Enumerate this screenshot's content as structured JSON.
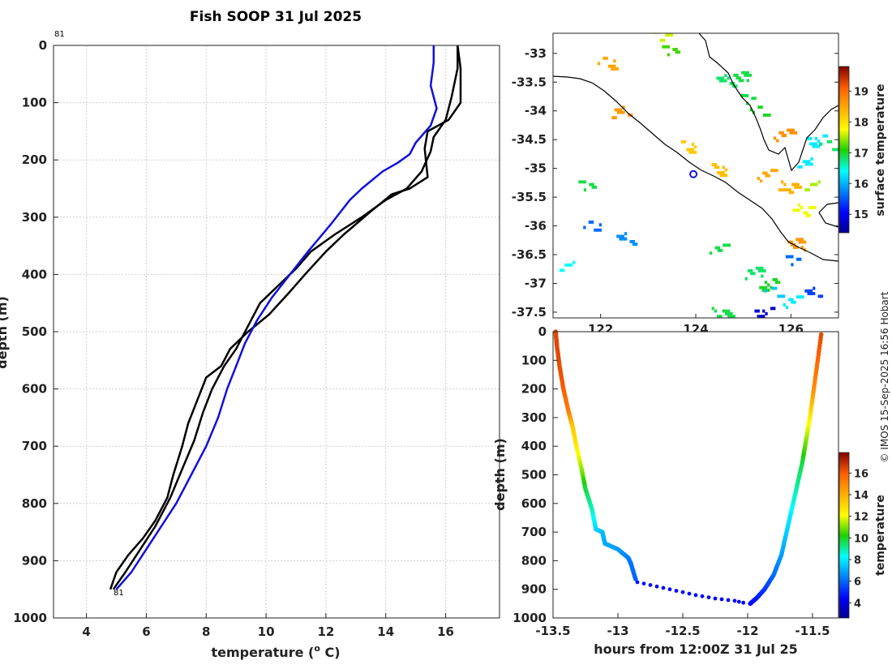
{
  "title": "Fish SOOP 31 Jul 2025",
  "credit": "© IMOS 15-Sep-2025 16:56 Hobart",
  "colors": {
    "blue": "#1010dd",
    "black": "#000000",
    "coast": "#000000"
  },
  "chart_data": [
    {
      "type": "line",
      "name": "temperature-profile",
      "xlabel": "temperature (o C)",
      "xlabel_main": "temperature (",
      "xlabel_sup": "o",
      "xlabel_tail": " C)",
      "ylabel": "depth (m)",
      "xlim": [
        2.9,
        17.8
      ],
      "ylim": [
        0,
        1000
      ],
      "xticks": [
        4,
        6,
        8,
        10,
        12,
        14,
        16
      ],
      "yticks": [
        0,
        100,
        200,
        300,
        400,
        500,
        600,
        700,
        800,
        900,
        1000
      ],
      "drop_label_top": "81",
      "drop_label_bottom": "81",
      "grid": true,
      "series": [
        {
          "name": "current drop",
          "color": "#1010dd",
          "points": [
            [
              15.6,
              0
            ],
            [
              15.6,
              30
            ],
            [
              15.5,
              70
            ],
            [
              15.7,
              110
            ],
            [
              15.5,
              140
            ],
            [
              15.0,
              170
            ],
            [
              14.8,
              190
            ],
            [
              14.4,
              205
            ],
            [
              13.9,
              220
            ],
            [
              13.2,
              250
            ],
            [
              12.8,
              270
            ],
            [
              12.2,
              310
            ],
            [
              11.4,
              360
            ],
            [
              10.8,
              400
            ],
            [
              10.2,
              440
            ],
            [
              9.7,
              480
            ],
            [
              9.3,
              520
            ],
            [
              9.0,
              560
            ],
            [
              8.7,
              600
            ],
            [
              8.4,
              650
            ],
            [
              8.0,
              700
            ],
            [
              7.5,
              750
            ],
            [
              7.0,
              800
            ],
            [
              6.5,
              840
            ],
            [
              6.0,
              880
            ],
            [
              5.5,
              920
            ],
            [
              5.0,
              950
            ]
          ]
        },
        {
          "name": "previous drop 1",
          "color": "#000000",
          "points": [
            [
              16.4,
              0
            ],
            [
              16.4,
              40
            ],
            [
              16.2,
              90
            ],
            [
              16.0,
              130
            ],
            [
              15.6,
              160
            ],
            [
              15.5,
              185
            ],
            [
              15.2,
              220
            ],
            [
              14.7,
              250
            ],
            [
              14.0,
              270
            ],
            [
              13.2,
              300
            ],
            [
              12.3,
              330
            ],
            [
              11.5,
              360
            ],
            [
              11.0,
              390
            ],
            [
              10.4,
              420
            ],
            [
              9.8,
              450
            ],
            [
              9.4,
              490
            ],
            [
              9.0,
              530
            ],
            [
              8.6,
              560
            ],
            [
              8.2,
              600
            ],
            [
              7.9,
              640
            ],
            [
              7.6,
              690
            ],
            [
              7.2,
              740
            ],
            [
              6.8,
              790
            ],
            [
              6.3,
              840
            ],
            [
              5.8,
              880
            ],
            [
              5.3,
              920
            ],
            [
              4.9,
              950
            ]
          ]
        },
        {
          "name": "previous drop 2",
          "color": "#000000",
          "points": [
            [
              16.4,
              0
            ],
            [
              16.5,
              40
            ],
            [
              16.5,
              100
            ],
            [
              16.1,
              130
            ],
            [
              15.4,
              150
            ],
            [
              15.3,
              180
            ],
            [
              15.4,
              230
            ],
            [
              14.8,
              250
            ],
            [
              14.2,
              260
            ],
            [
              13.5,
              290
            ],
            [
              12.6,
              330
            ],
            [
              12.0,
              360
            ],
            [
              11.3,
              400
            ],
            [
              10.8,
              430
            ],
            [
              10.1,
              470
            ],
            [
              9.4,
              500
            ],
            [
              8.8,
              530
            ],
            [
              8.5,
              560
            ],
            [
              8.0,
              580
            ],
            [
              7.7,
              620
            ],
            [
              7.4,
              660
            ],
            [
              7.2,
              700
            ],
            [
              6.9,
              750
            ],
            [
              6.7,
              790
            ],
            [
              6.3,
              830
            ],
            [
              5.9,
              860
            ],
            [
              5.4,
              890
            ],
            [
              5.0,
              920
            ],
            [
              4.8,
              950
            ]
          ]
        }
      ]
    },
    {
      "type": "heatmap",
      "name": "surface-temperature-map",
      "colorbar_label": "surface temperature",
      "xlim": [
        121.0,
        127.0
      ],
      "ylim": [
        -37.6,
        -32.65
      ],
      "xticks": [
        122,
        124,
        126
      ],
      "xtick_labels": [
        "122",
        "124",
        "126"
      ],
      "yticks": [
        -33,
        -33.5,
        -34,
        -34.5,
        -35,
        -35.5,
        -36,
        -36.5,
        -37,
        -37.5
      ],
      "ytick_labels": [
        "-33",
        "-33.5",
        "-34",
        "-34.5",
        "-35",
        "-35.5",
        "-36",
        "-36.5",
        "-37",
        "-37.5"
      ],
      "clim": [
        14.4,
        19.8
      ],
      "cticks": [
        15,
        16,
        17,
        18,
        19
      ],
      "drop_location": {
        "lon": 123.95,
        "lat": -35.1
      },
      "patches": [
        {
          "lon": 123.3,
          "lat": -32.7,
          "t": 17.6
        },
        {
          "lon": 123.4,
          "lat": -32.95,
          "t": 17.2
        },
        {
          "lon": 122.1,
          "lat": -33.15,
          "t": 18.5
        },
        {
          "lon": 124.6,
          "lat": -33.45,
          "t": 16.8
        },
        {
          "lon": 124.9,
          "lat": -33.4,
          "t": 16.9
        },
        {
          "lon": 125.0,
          "lat": -33.8,
          "t": 16.9
        },
        {
          "lon": 125.3,
          "lat": -34.0,
          "t": 17.0
        },
        {
          "lon": 122.4,
          "lat": -34.0,
          "t": 18.6
        },
        {
          "lon": 125.8,
          "lat": -34.4,
          "t": 18.7
        },
        {
          "lon": 126.5,
          "lat": -34.5,
          "t": 16.3
        },
        {
          "lon": 126.7,
          "lat": -34.6,
          "t": 16.8
        },
        {
          "lon": 126.3,
          "lat": -34.9,
          "t": 16.3
        },
        {
          "lon": 125.4,
          "lat": -35.1,
          "t": 18.5
        },
        {
          "lon": 124.5,
          "lat": -35.0,
          "t": 18.3
        },
        {
          "lon": 125.9,
          "lat": -35.3,
          "t": 18.4
        },
        {
          "lon": 126.4,
          "lat": -35.3,
          "t": 17.5
        },
        {
          "lon": 121.7,
          "lat": -35.3,
          "t": 16.9
        },
        {
          "lon": 123.8,
          "lat": -34.6,
          "t": 18.2
        },
        {
          "lon": 126.2,
          "lat": -35.7,
          "t": 17.7
        },
        {
          "lon": 126.1,
          "lat": -36.3,
          "t": 18.6
        },
        {
          "lon": 126.0,
          "lat": -36.6,
          "t": 15.6
        },
        {
          "lon": 121.8,
          "lat": -36.0,
          "t": 15.6
        },
        {
          "lon": 122.5,
          "lat": -36.2,
          "t": 15.8
        },
        {
          "lon": 125.2,
          "lat": -36.8,
          "t": 16.8
        },
        {
          "lon": 125.5,
          "lat": -37.0,
          "t": 17.0
        },
        {
          "lon": 125.6,
          "lat": -37.15,
          "t": 16.1
        },
        {
          "lon": 126.4,
          "lat": -37.15,
          "t": 15.4
        },
        {
          "lon": 126.0,
          "lat": -37.3,
          "t": 16.3
        },
        {
          "lon": 125.4,
          "lat": -37.5,
          "t": 14.8
        },
        {
          "lon": 124.5,
          "lat": -37.5,
          "t": 16.9
        },
        {
          "lon": 121.3,
          "lat": -36.7,
          "t": 16.4
        },
        {
          "lon": 124.4,
          "lat": -36.4,
          "t": 16.9
        }
      ]
    },
    {
      "type": "scatter",
      "name": "depth-time-trace",
      "xlabel": "hours from 12:00Z 31 Jul 25",
      "ylabel": "depth (m)",
      "colorbar_label": "temperature",
      "xlim": [
        -13.5,
        -11.3
      ],
      "ylim": [
        0,
        1000
      ],
      "xticks": [
        -13.5,
        -13,
        -12.5,
        -12,
        -11.5
      ],
      "xtick_labels": [
        "-13.5",
        "-13",
        "-12.5",
        "-12",
        "-11.5"
      ],
      "yticks": [
        0,
        100,
        200,
        300,
        400,
        500,
        600,
        700,
        800,
        900,
        1000
      ],
      "clim": [
        2.6,
        17.9
      ],
      "cticks": [
        4,
        6,
        8,
        10,
        12,
        14,
        16
      ],
      "descent": [
        [
          -13.48,
          0
        ],
        [
          -13.47,
          50
        ],
        [
          -13.45,
          120
        ],
        [
          -13.42,
          200
        ],
        [
          -13.38,
          280
        ],
        [
          -13.35,
          330
        ],
        [
          -13.32,
          400
        ],
        [
          -13.28,
          480
        ],
        [
          -13.25,
          550
        ],
        [
          -13.2,
          620
        ],
        [
          -13.17,
          690
        ],
        [
          -13.12,
          700
        ],
        [
          -13.1,
          740
        ],
        [
          -13.0,
          760
        ],
        [
          -12.92,
          790
        ],
        [
          -12.9,
          810
        ],
        [
          -12.86,
          870
        ]
      ],
      "descent_temps": [
        16.4,
        16.4,
        16.3,
        16.0,
        15.3,
        13.5,
        12.6,
        11.2,
        9.8,
        8.8,
        7.7,
        7.3,
        7.0,
        6.8,
        6.4,
        6.2,
        5.9
      ],
      "bottom": [
        [
          -12.85,
          875
        ],
        [
          -12.7,
          890
        ],
        [
          -12.55,
          905
        ],
        [
          -12.4,
          920
        ],
        [
          -12.25,
          932
        ],
        [
          -12.1,
          940
        ],
        [
          -12.0,
          950
        ]
      ],
      "bottom_temps": [
        4.7,
        4.6,
        4.6,
        4.5,
        4.5,
        4.4,
        4.4
      ],
      "ascent": [
        [
          -11.98,
          950
        ],
        [
          -11.93,
          930
        ],
        [
          -11.87,
          900
        ],
        [
          -11.8,
          850
        ],
        [
          -11.74,
          780
        ],
        [
          -11.7,
          700
        ],
        [
          -11.66,
          620
        ],
        [
          -11.62,
          540
        ],
        [
          -11.58,
          460
        ],
        [
          -11.55,
          380
        ],
        [
          -11.52,
          300
        ],
        [
          -11.49,
          200
        ],
        [
          -11.46,
          100
        ],
        [
          -11.43,
          0
        ]
      ],
      "ascent_temps": [
        4.5,
        4.8,
        5.2,
        6.0,
        6.8,
        7.5,
        8.2,
        9.0,
        9.7,
        11.0,
        12.5,
        14.8,
        15.8,
        16.4
      ]
    }
  ]
}
